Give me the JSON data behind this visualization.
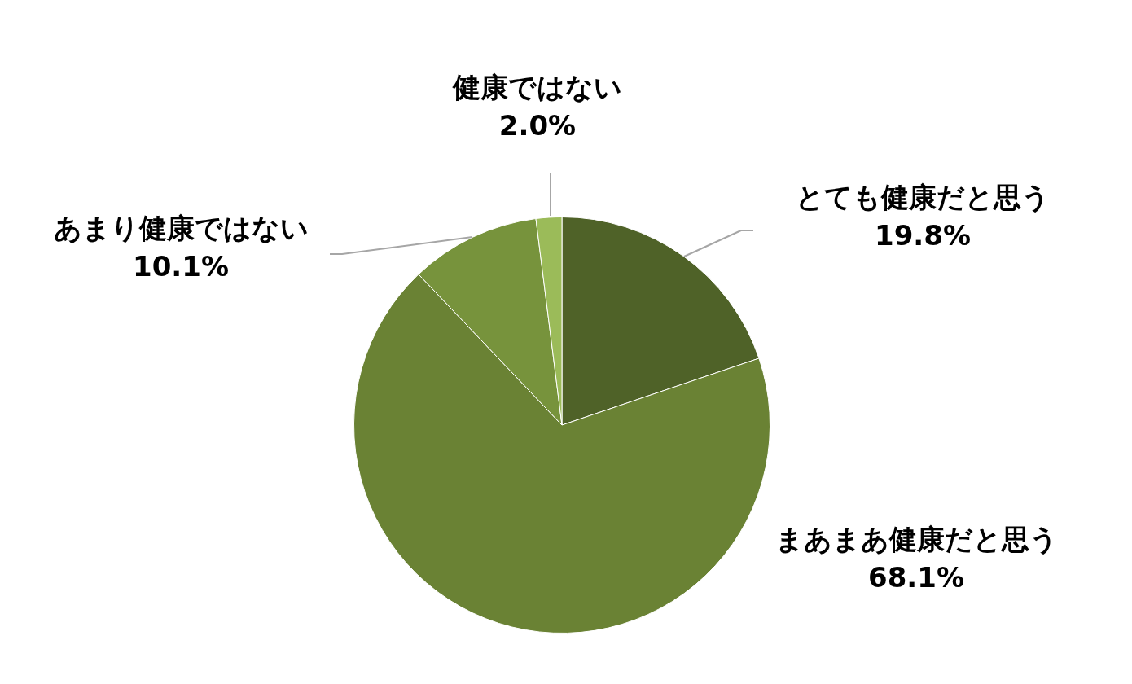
{
  "chart_data": {
    "type": "pie",
    "categories": [
      "とても健康だと思う",
      "まあまあ健康だと思う",
      "あまり健康ではない",
      "健康ではない"
    ],
    "values": [
      19.8,
      68.1,
      10.1,
      2.0
    ],
    "value_labels": [
      "19.8%",
      "68.1%",
      "10.1%",
      "2.0%"
    ],
    "colors": [
      "#4f6228",
      "#6a8234",
      "#77933c",
      "#9bbb59"
    ],
    "legend": false
  }
}
